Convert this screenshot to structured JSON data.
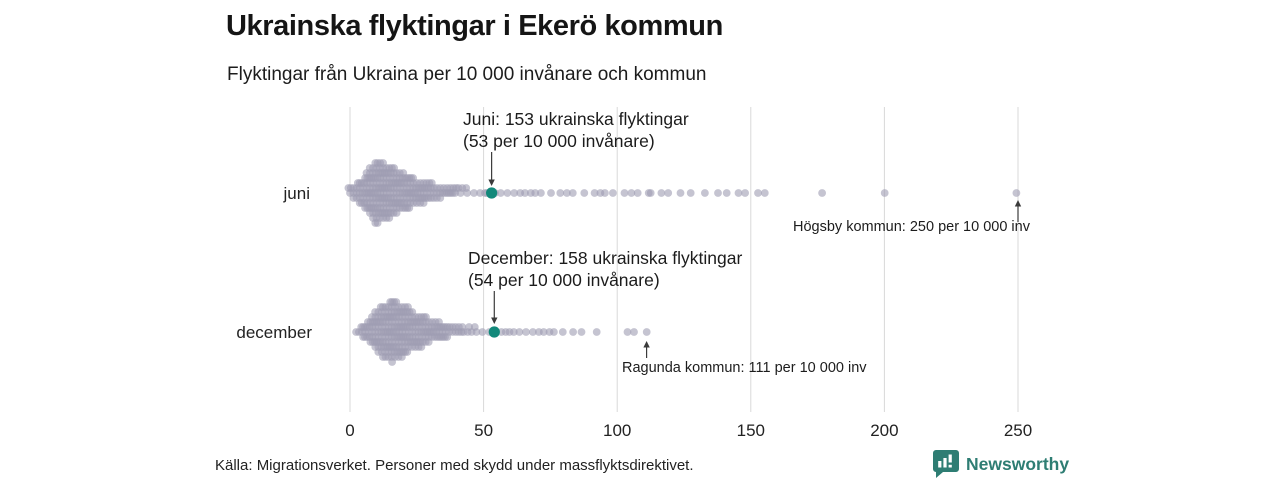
{
  "header": {
    "title": "Ukrainska flyktingar i Ekerö kommun",
    "subtitle": "Flyktingar från Ukraina per 10 000 invånare och kommun"
  },
  "chart_data": {
    "type": "beeswarm",
    "title": "Ukrainska flyktingar i Ekerö kommun",
    "xlabel": "Flyktingar från Ukraina per 10 000 invånare",
    "xlim": [
      0,
      258
    ],
    "x_ticks": [
      0,
      50,
      100,
      150,
      200,
      250
    ],
    "grid": "vertical",
    "rows": [
      {
        "label": "juni",
        "annotation_line1": "Juni: 153 ukrainska flyktingar",
        "annotation_line2": "(53 per 10 000 invånare)",
        "highlight": {
          "municipality": "Ekerö",
          "value": 53,
          "refugees": 153
        },
        "outlier": {
          "label": "Högsby kommun: 250 per 10 000 inv",
          "municipality": "Högsby",
          "value": 250
        },
        "values": [
          0,
          0,
          1,
          1,
          2,
          2,
          2,
          3,
          3,
          3,
          3,
          4,
          4,
          4,
          4,
          4,
          5,
          5,
          5,
          5,
          5,
          5,
          5,
          6,
          6,
          6,
          6,
          6,
          6,
          6,
          6,
          7,
          7,
          7,
          7,
          7,
          7,
          7,
          7,
          7,
          8,
          8,
          8,
          8,
          8,
          8,
          8,
          8,
          8,
          8,
          9,
          9,
          9,
          9,
          9,
          9,
          9,
          9,
          9,
          9,
          9,
          10,
          10,
          10,
          10,
          10,
          10,
          10,
          10,
          10,
          10,
          10,
          10,
          10,
          11,
          11,
          11,
          11,
          11,
          11,
          11,
          11,
          11,
          11,
          11,
          11,
          11,
          12,
          12,
          12,
          12,
          12,
          12,
          12,
          12,
          12,
          12,
          12,
          12,
          13,
          13,
          13,
          13,
          13,
          13,
          13,
          13,
          13,
          13,
          13,
          13,
          14,
          14,
          14,
          14,
          14,
          14,
          14,
          14,
          14,
          14,
          14,
          15,
          15,
          15,
          15,
          15,
          15,
          15,
          15,
          15,
          15,
          16,
          16,
          16,
          16,
          16,
          16,
          16,
          16,
          16,
          16,
          17,
          17,
          17,
          17,
          17,
          17,
          17,
          17,
          17,
          18,
          18,
          18,
          18,
          18,
          18,
          18,
          18,
          18,
          19,
          19,
          19,
          19,
          19,
          19,
          19,
          19,
          20,
          20,
          20,
          20,
          20,
          20,
          20,
          20,
          21,
          21,
          21,
          21,
          21,
          21,
          21,
          22,
          22,
          22,
          22,
          22,
          22,
          22,
          23,
          23,
          23,
          23,
          23,
          23,
          24,
          24,
          24,
          24,
          24,
          24,
          25,
          25,
          25,
          25,
          25,
          26,
          26,
          26,
          26,
          26,
          27,
          27,
          27,
          27,
          27,
          28,
          28,
          28,
          28,
          29,
          29,
          29,
          29,
          30,
          30,
          30,
          30,
          31,
          31,
          31,
          32,
          32,
          32,
          33,
          33,
          33,
          34,
          34,
          34,
          35,
          35,
          36,
          36,
          37,
          37,
          38,
          38,
          39,
          39,
          40,
          40,
          42,
          42,
          44,
          44,
          46,
          48,
          50,
          51,
          55,
          57,
          59,
          61,
          63,
          65,
          68,
          70,
          72,
          75,
          78,
          81,
          84,
          88,
          91,
          93,
          95,
          99,
          103,
          105,
          107,
          112,
          113,
          117,
          119,
          123,
          128,
          133,
          137,
          141,
          146,
          148,
          152,
          155,
          177,
          200,
          250
        ]
      },
      {
        "label": "december",
        "annotation_line1": "December: 158 ukrainska flyktingar",
        "annotation_line2": "(54 per 10 000 invånare)",
        "highlight": {
          "municipality": "Ekerö",
          "value": 54,
          "refugees": 158
        },
        "outlier": {
          "label": "Ragunda kommun: 111 per 10 000 inv",
          "municipality": "Ragunda",
          "value": 111
        },
        "values": [
          3,
          4,
          4,
          5,
          5,
          5,
          6,
          6,
          6,
          6,
          7,
          7,
          7,
          7,
          7,
          8,
          8,
          8,
          8,
          8,
          8,
          9,
          9,
          9,
          9,
          9,
          9,
          9,
          10,
          10,
          10,
          10,
          10,
          10,
          10,
          10,
          11,
          11,
          11,
          11,
          11,
          11,
          11,
          11,
          11,
          12,
          12,
          12,
          12,
          12,
          12,
          12,
          12,
          12,
          12,
          13,
          13,
          13,
          13,
          13,
          13,
          13,
          13,
          13,
          13,
          13,
          14,
          14,
          14,
          14,
          14,
          14,
          14,
          14,
          14,
          14,
          14,
          15,
          15,
          15,
          15,
          15,
          15,
          15,
          15,
          15,
          15,
          15,
          15,
          16,
          16,
          16,
          16,
          16,
          16,
          16,
          16,
          16,
          16,
          16,
          16,
          16,
          17,
          17,
          17,
          17,
          17,
          17,
          17,
          17,
          17,
          17,
          17,
          17,
          18,
          18,
          18,
          18,
          18,
          18,
          18,
          18,
          18,
          18,
          18,
          18,
          19,
          19,
          19,
          19,
          19,
          19,
          19,
          19,
          19,
          19,
          19,
          20,
          20,
          20,
          20,
          20,
          20,
          20,
          20,
          20,
          20,
          21,
          21,
          21,
          21,
          21,
          21,
          21,
          21,
          21,
          21,
          22,
          22,
          22,
          22,
          22,
          22,
          22,
          22,
          22,
          23,
          23,
          23,
          23,
          23,
          23,
          23,
          23,
          24,
          24,
          24,
          24,
          24,
          24,
          24,
          24,
          25,
          25,
          25,
          25,
          25,
          25,
          25,
          26,
          26,
          26,
          26,
          26,
          26,
          26,
          27,
          27,
          27,
          27,
          27,
          27,
          28,
          28,
          28,
          28,
          28,
          28,
          29,
          29,
          29,
          29,
          29,
          30,
          30,
          30,
          30,
          30,
          31,
          31,
          31,
          31,
          32,
          32,
          32,
          32,
          33,
          33,
          33,
          33,
          34,
          34,
          34,
          35,
          35,
          35,
          36,
          36,
          36,
          37,
          37,
          37,
          38,
          38,
          39,
          39,
          40,
          40,
          41,
          41,
          42,
          42,
          44,
          44,
          46,
          46,
          48,
          50,
          52,
          56,
          58,
          60,
          62,
          64,
          66,
          68,
          70,
          72,
          75,
          77,
          80,
          83,
          86,
          93,
          104,
          107,
          111
        ]
      }
    ]
  },
  "footer": {
    "source": "Källa: Migrationsverket. Personer med skydd under massflyktsdirektivet.",
    "brand": "Newsworthy"
  },
  "colors": {
    "dot": "#9e9cb2",
    "highlight": "#13897b",
    "brand": "#2e7d73",
    "gridline": "#d9d9d9",
    "arrow": "#3b3b3b"
  }
}
